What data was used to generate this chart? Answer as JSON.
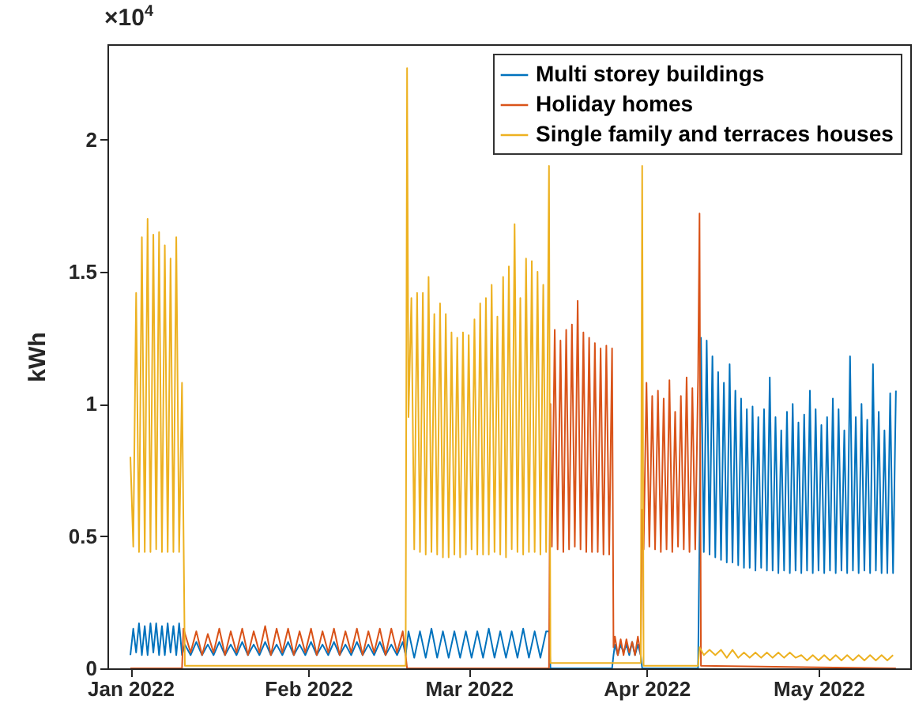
{
  "chart_data": {
    "type": "line",
    "ylabel": "kWh",
    "annotations": [
      "×10$^{4}$"
    ],
    "xlim": [
      "2021-12-28",
      "2022-05-17"
    ],
    "xticks": [
      {
        "value": "2022-01-01",
        "label": "Jan 2022"
      },
      {
        "value": "2022-02-01",
        "label": "Feb 2022"
      },
      {
        "value": "2022-03-01",
        "label": "Mar 2022"
      },
      {
        "value": "2022-04-01",
        "label": "Apr 2022"
      },
      {
        "value": "2022-05-01",
        "label": "May 2022"
      }
    ],
    "ylim": [
      0,
      2.36
    ],
    "yticks": [
      0,
      0.5,
      1,
      1.5,
      2
    ],
    "grid": false,
    "legend": "top right",
    "series": [
      {
        "name": "Multi storey buildings",
        "color": "#0072bd",
        "x": [
          "2022-01-01T00:00",
          "2022-01-01T12:00",
          "2022-01-02T00:00",
          "2022-01-02T12:00",
          "2022-01-03T00:00",
          "2022-01-03T12:00",
          "2022-01-04T00:00",
          "2022-01-04T12:00",
          "2022-01-05T00:00",
          "2022-01-05T12:00",
          "2022-01-06T00:00",
          "2022-01-06T12:00",
          "2022-01-07T00:00",
          "2022-01-07T12:00",
          "2022-01-08T00:00",
          "2022-01-08T12:00",
          "2022-01-09T00:00",
          "2022-01-09T12:00",
          "2022-01-10T00:00",
          "2022-01-10T12:00",
          "2022-01-11T12:00",
          "2022-01-12T12:00",
          "2022-01-13T12:00",
          "2022-01-14T12:00",
          "2022-01-15T12:00",
          "2022-01-16T12:00",
          "2022-01-17T12:00",
          "2022-01-18T12:00",
          "2022-01-19T12:00",
          "2022-01-20T12:00",
          "2022-01-21T12:00",
          "2022-01-22T12:00",
          "2022-01-23T12:00",
          "2022-01-24T12:00",
          "2022-01-25T12:00",
          "2022-01-26T12:00",
          "2022-01-27T12:00",
          "2022-01-28T12:00",
          "2022-01-29T12:00",
          "2022-01-30T12:00",
          "2022-01-31T12:00",
          "2022-02-01T12:00",
          "2022-02-02T12:00",
          "2022-02-03T12:00",
          "2022-02-04T12:00",
          "2022-02-05T12:00",
          "2022-02-06T12:00",
          "2022-02-07T12:00",
          "2022-02-08T12:00",
          "2022-02-09T12:00",
          "2022-02-10T12:00",
          "2022-02-11T12:00",
          "2022-02-12T12:00",
          "2022-02-13T12:00",
          "2022-02-14T12:00",
          "2022-02-15T12:00",
          "2022-02-16T12:00",
          "2022-02-17T12:00",
          "2022-02-18T00:00",
          "2022-02-18T12:00",
          "2022-02-19T12:00",
          "2022-02-20T12:00",
          "2022-02-21T12:00",
          "2022-02-22T12:00",
          "2022-02-23T12:00",
          "2022-02-24T12:00",
          "2022-02-25T12:00",
          "2022-02-26T12:00",
          "2022-02-27T12:00",
          "2022-02-28T12:00",
          "2022-03-01T12:00",
          "2022-03-02T12:00",
          "2022-03-03T12:00",
          "2022-03-04T12:00",
          "2022-03-05T12:00",
          "2022-03-06T12:00",
          "2022-03-07T12:00",
          "2022-03-08T12:00",
          "2022-03-09T12:00",
          "2022-03-10T12:00",
          "2022-03-11T12:00",
          "2022-03-12T12:00",
          "2022-03-13T12:00",
          "2022-03-14T12:00",
          "2022-03-15T00:00",
          "2022-03-15T06:00",
          "2022-03-26T00:00",
          "2022-03-26T06:00",
          "2022-03-26T12:00",
          "2022-03-27T00:00",
          "2022-03-27T12:00",
          "2022-03-28T00:00",
          "2022-03-28T12:00",
          "2022-03-29T00:00",
          "2022-03-29T12:00",
          "2022-03-30T00:00",
          "2022-03-30T12:00",
          "2022-03-31T00:00",
          "2022-03-31T06:00",
          "2022-04-10T00:00",
          "2022-04-10T06:00",
          "2022-04-10T12:00",
          "2022-04-11T00:00",
          "2022-04-11T12:00",
          "2022-04-12T00:00",
          "2022-04-12T12:00",
          "2022-04-13T00:00",
          "2022-04-13T12:00",
          "2022-04-14T00:00",
          "2022-04-14T12:00",
          "2022-04-15T00:00",
          "2022-04-15T12:00",
          "2022-04-16T00:00",
          "2022-04-16T12:00",
          "2022-04-17T00:00",
          "2022-04-17T12:00",
          "2022-04-18T00:00",
          "2022-04-18T12:00",
          "2022-04-19T00:00",
          "2022-04-19T12:00",
          "2022-04-20T00:00",
          "2022-04-20T12:00",
          "2022-04-21T00:00",
          "2022-04-21T12:00",
          "2022-04-22T00:00",
          "2022-04-22T12:00",
          "2022-04-23T00:00",
          "2022-04-23T12:00",
          "2022-04-24T00:00",
          "2022-04-24T12:00",
          "2022-04-25T00:00",
          "2022-04-25T12:00",
          "2022-04-26T00:00",
          "2022-04-26T12:00",
          "2022-04-27T00:00",
          "2022-04-27T12:00",
          "2022-04-28T00:00",
          "2022-04-28T12:00",
          "2022-04-29T00:00",
          "2022-04-29T12:00",
          "2022-04-30T00:00",
          "2022-04-30T12:00",
          "2022-05-01T00:00",
          "2022-05-01T12:00",
          "2022-05-02T00:00",
          "2022-05-02T12:00",
          "2022-05-03T00:00",
          "2022-05-03T12:00",
          "2022-05-04T00:00",
          "2022-05-04T12:00",
          "2022-05-05T00:00",
          "2022-05-05T12:00",
          "2022-05-06T00:00",
          "2022-05-06T12:00",
          "2022-05-07T00:00",
          "2022-05-07T12:00",
          "2022-05-08T00:00",
          "2022-05-08T12:00",
          "2022-05-09T00:00",
          "2022-05-09T12:00",
          "2022-05-10T00:00",
          "2022-05-10T12:00",
          "2022-05-11T00:00",
          "2022-05-11T12:00",
          "2022-05-12T00:00",
          "2022-05-12T12:00",
          "2022-05-13T00:00",
          "2022-05-13T12:00",
          "2022-05-14T00:00",
          "2022-05-14T12:00"
        ],
        "values": [
          0.05,
          0.15,
          0.06,
          0.17,
          0.05,
          0.16,
          0.05,
          0.17,
          0.06,
          0.17,
          0.05,
          0.16,
          0.05,
          0.17,
          0.06,
          0.16,
          0.05,
          0.17,
          0.05,
          0.09,
          0.05,
          0.1,
          0.05,
          0.09,
          0.05,
          0.1,
          0.05,
          0.09,
          0.05,
          0.1,
          0.05,
          0.09,
          0.05,
          0.1,
          0.05,
          0.09,
          0.05,
          0.1,
          0.05,
          0.09,
          0.05,
          0.1,
          0.05,
          0.09,
          0.05,
          0.1,
          0.05,
          0.09,
          0.05,
          0.1,
          0.05,
          0.09,
          0.05,
          0.1,
          0.05,
          0.09,
          0.05,
          0.1,
          0.05,
          0.14,
          0.04,
          0.14,
          0.04,
          0.15,
          0.04,
          0.14,
          0.04,
          0.14,
          0.04,
          0.14,
          0.04,
          0.14,
          0.04,
          0.15,
          0.04,
          0.14,
          0.04,
          0.14,
          0.04,
          0.15,
          0.04,
          0.14,
          0.04,
          0.14,
          0.14,
          0,
          0,
          0.05,
          0.09,
          0.05,
          0.09,
          0.06,
          0.09,
          0.05,
          0.1,
          0.05,
          0.09,
          0.05,
          0,
          0,
          0.5,
          1.25,
          0.44,
          1.24,
          0.43,
          1.18,
          0.42,
          1.12,
          0.41,
          1.08,
          0.4,
          1.15,
          0.4,
          1.05,
          0.39,
          1.02,
          0.38,
          0.98,
          0.38,
          0.99,
          0.37,
          0.95,
          0.38,
          0.98,
          0.37,
          1.1,
          0.37,
          0.95,
          0.36,
          0.9,
          0.37,
          0.97,
          0.36,
          1,
          0.37,
          0.93,
          0.36,
          0.96,
          0.37,
          1.05,
          0.36,
          0.98,
          0.37,
          0.92,
          0.36,
          0.95,
          0.37,
          1.02,
          0.36,
          0.98,
          0.37,
          0.9,
          0.36,
          1.18,
          0.37,
          0.95,
          0.36,
          1,
          0.37,
          0.94,
          0.36,
          1.15,
          0.37,
          0.97,
          0.36,
          0.9,
          0.36,
          1.04,
          0.36,
          1.05
        ]
      },
      {
        "name": "Holiday homes",
        "color": "#d95319",
        "x": [
          "2022-01-01T00:00",
          "2022-01-10T00:00",
          "2022-01-10T06:00",
          "2022-01-11T12:00",
          "2022-01-12T12:00",
          "2022-01-13T12:00",
          "2022-01-14T12:00",
          "2022-01-15T12:00",
          "2022-01-16T12:00",
          "2022-01-17T12:00",
          "2022-01-18T12:00",
          "2022-01-19T12:00",
          "2022-01-20T12:00",
          "2022-01-21T12:00",
          "2022-01-22T12:00",
          "2022-01-23T12:00",
          "2022-01-24T12:00",
          "2022-01-25T12:00",
          "2022-01-26T12:00",
          "2022-01-27T12:00",
          "2022-01-28T12:00",
          "2022-01-29T12:00",
          "2022-01-30T12:00",
          "2022-01-31T12:00",
          "2022-02-01T12:00",
          "2022-02-02T12:00",
          "2022-02-03T12:00",
          "2022-02-04T12:00",
          "2022-02-05T12:00",
          "2022-02-06T12:00",
          "2022-02-07T12:00",
          "2022-02-08T12:00",
          "2022-02-09T12:00",
          "2022-02-10T12:00",
          "2022-02-11T12:00",
          "2022-02-12T12:00",
          "2022-02-13T12:00",
          "2022-02-14T12:00",
          "2022-02-15T12:00",
          "2022-02-16T12:00",
          "2022-02-17T12:00",
          "2022-02-18T00:00",
          "2022-02-18T06:00",
          "2022-03-15T00:00",
          "2022-03-15T06:00",
          "2022-03-15T12:00",
          "2022-03-16T00:00",
          "2022-03-16T12:00",
          "2022-03-17T00:00",
          "2022-03-17T12:00",
          "2022-03-18T00:00",
          "2022-03-18T12:00",
          "2022-03-19T00:00",
          "2022-03-19T12:00",
          "2022-03-20T00:00",
          "2022-03-20T12:00",
          "2022-03-21T00:00",
          "2022-03-21T12:00",
          "2022-03-22T00:00",
          "2022-03-22T12:00",
          "2022-03-23T00:00",
          "2022-03-23T12:00",
          "2022-03-24T00:00",
          "2022-03-24T12:00",
          "2022-03-25T00:00",
          "2022-03-25T12:00",
          "2022-03-26T00:00",
          "2022-03-26T06:00",
          "2022-03-26T12:00",
          "2022-03-27T00:00",
          "2022-03-27T12:00",
          "2022-03-28T00:00",
          "2022-03-28T12:00",
          "2022-03-29T00:00",
          "2022-03-29T12:00",
          "2022-03-30T00:00",
          "2022-03-30T12:00",
          "2022-03-31T00:00",
          "2022-03-31T06:00",
          "2022-03-31T12:00",
          "2022-04-01T00:00",
          "2022-04-01T12:00",
          "2022-04-02T00:00",
          "2022-04-02T12:00",
          "2022-04-03T00:00",
          "2022-04-03T12:00",
          "2022-04-04T00:00",
          "2022-04-04T12:00",
          "2022-04-05T00:00",
          "2022-04-05T12:00",
          "2022-04-06T00:00",
          "2022-04-06T12:00",
          "2022-04-07T00:00",
          "2022-04-07T12:00",
          "2022-04-08T00:00",
          "2022-04-08T12:00",
          "2022-04-09T00:00",
          "2022-04-09T12:00",
          "2022-04-10T00:00",
          "2022-04-10T06:00",
          "2022-04-10T12:00",
          "2022-05-14T12:00"
        ],
        "values": [
          0,
          0,
          0.15,
          0.06,
          0.14,
          0.05,
          0.13,
          0.06,
          0.15,
          0.05,
          0.14,
          0.06,
          0.15,
          0.05,
          0.14,
          0.06,
          0.16,
          0.05,
          0.15,
          0.06,
          0.15,
          0.05,
          0.14,
          0.06,
          0.15,
          0.05,
          0.14,
          0.06,
          0.15,
          0.05,
          0.14,
          0.06,
          0.15,
          0.05,
          0.14,
          0.06,
          0.15,
          0.05,
          0.15,
          0.06,
          0.14,
          0.05,
          0,
          0,
          1,
          0.46,
          1.28,
          0.45,
          1.24,
          0.44,
          1.28,
          0.45,
          1.3,
          0.46,
          1.39,
          0.45,
          1.27,
          0.44,
          1.25,
          0.44,
          1.23,
          0.44,
          1.21,
          0.43,
          1.22,
          0.43,
          1.21,
          0.08,
          0.12,
          0.05,
          0.11,
          0.05,
          0.11,
          0.06,
          0.1,
          0.05,
          0.12,
          0.05,
          0.6,
          0.45,
          1.08,
          0.46,
          1.03,
          0.45,
          1.05,
          0.44,
          1.02,
          0.45,
          1.09,
          0.44,
          0.97,
          0.46,
          1.03,
          0.45,
          1.1,
          0.44,
          1.06,
          0.45,
          1.1,
          1.72,
          0.01,
          0
        ]
      },
      {
        "name": "Single family and terraces houses",
        "color": "#edb120",
        "x": [
          "2022-01-01T00:00",
          "2022-01-01T12:00",
          "2022-01-02T00:00",
          "2022-01-02T12:00",
          "2022-01-03T00:00",
          "2022-01-03T12:00",
          "2022-01-04T00:00",
          "2022-01-04T12:00",
          "2022-01-05T00:00",
          "2022-01-05T12:00",
          "2022-01-06T00:00",
          "2022-01-06T12:00",
          "2022-01-07T00:00",
          "2022-01-07T12:00",
          "2022-01-08T00:00",
          "2022-01-08T12:00",
          "2022-01-09T00:00",
          "2022-01-09T12:00",
          "2022-01-10T00:00",
          "2022-01-10T12:00",
          "2022-02-18T00:00",
          "2022-02-18T06:00",
          "2022-02-18T12:00",
          "2022-02-19T00:00",
          "2022-02-19T12:00",
          "2022-02-20T00:00",
          "2022-02-20T12:00",
          "2022-02-21T00:00",
          "2022-02-21T12:00",
          "2022-02-22T00:00",
          "2022-02-22T12:00",
          "2022-02-23T00:00",
          "2022-02-23T12:00",
          "2022-02-24T00:00",
          "2022-02-24T12:00",
          "2022-02-25T00:00",
          "2022-02-25T12:00",
          "2022-02-26T00:00",
          "2022-02-26T12:00",
          "2022-02-27T00:00",
          "2022-02-27T12:00",
          "2022-02-28T00:00",
          "2022-02-28T12:00",
          "2022-03-01T00:00",
          "2022-03-01T12:00",
          "2022-03-02T00:00",
          "2022-03-02T12:00",
          "2022-03-03T00:00",
          "2022-03-03T12:00",
          "2022-03-04T00:00",
          "2022-03-04T12:00",
          "2022-03-05T00:00",
          "2022-03-05T12:00",
          "2022-03-06T00:00",
          "2022-03-06T12:00",
          "2022-03-07T00:00",
          "2022-03-07T12:00",
          "2022-03-08T00:00",
          "2022-03-08T12:00",
          "2022-03-09T00:00",
          "2022-03-09T12:00",
          "2022-03-10T00:00",
          "2022-03-10T12:00",
          "2022-03-11T00:00",
          "2022-03-11T12:00",
          "2022-03-12T00:00",
          "2022-03-12T12:00",
          "2022-03-13T00:00",
          "2022-03-13T12:00",
          "2022-03-14T00:00",
          "2022-03-14T12:00",
          "2022-03-15T00:00",
          "2022-03-15T06:00",
          "2022-03-31T00:00",
          "2022-03-31T06:00",
          "2022-03-31T12:00",
          "2022-04-10T00:00",
          "2022-04-10T06:00",
          "2022-04-11T00:00",
          "2022-04-12T00:00",
          "2022-04-13T00:00",
          "2022-04-14T00:00",
          "2022-04-15T00:00",
          "2022-04-16T00:00",
          "2022-04-17T00:00",
          "2022-04-18T00:00",
          "2022-04-19T00:00",
          "2022-04-20T00:00",
          "2022-04-21T00:00",
          "2022-04-22T00:00",
          "2022-04-23T00:00",
          "2022-04-24T00:00",
          "2022-04-25T00:00",
          "2022-04-26T00:00",
          "2022-04-27T00:00",
          "2022-04-28T00:00",
          "2022-04-29T00:00",
          "2022-04-30T00:00",
          "2022-05-01T00:00",
          "2022-05-02T00:00",
          "2022-05-03T00:00",
          "2022-05-04T00:00",
          "2022-05-05T00:00",
          "2022-05-06T00:00",
          "2022-05-07T00:00",
          "2022-05-08T00:00",
          "2022-05-09T00:00",
          "2022-05-10T00:00",
          "2022-05-11T00:00",
          "2022-05-12T00:00",
          "2022-05-13T00:00",
          "2022-05-14T00:00"
        ],
        "values": [
          0.8,
          0.46,
          1.42,
          0.44,
          1.63,
          0.44,
          1.7,
          0.44,
          1.64,
          0.45,
          1.65,
          0.44,
          1.6,
          0.44,
          1.55,
          0.44,
          1.63,
          0.44,
          1.08,
          0.01,
          0.01,
          2.27,
          0.95,
          1.4,
          0.45,
          1.42,
          0.44,
          1.42,
          0.43,
          1.48,
          0.44,
          1.34,
          0.43,
          1.38,
          0.42,
          1.34,
          0.42,
          1.27,
          0.43,
          1.25,
          0.42,
          1.27,
          0.43,
          1.26,
          0.45,
          1.32,
          0.43,
          1.38,
          0.43,
          1.4,
          0.43,
          1.45,
          0.44,
          1.33,
          0.43,
          1.48,
          0.42,
          1.52,
          0.45,
          1.68,
          0.44,
          1.4,
          0.43,
          1.55,
          0.44,
          1.54,
          0.44,
          1.5,
          0.43,
          1.45,
          0.44,
          1.9,
          0.02,
          0.02,
          1.9,
          0.01,
          0.01,
          0.08,
          0.05,
          0.07,
          0.05,
          0.07,
          0.04,
          0.07,
          0.04,
          0.06,
          0.04,
          0.06,
          0.04,
          0.06,
          0.04,
          0.06,
          0.04,
          0.06,
          0.04,
          0.05,
          0.03,
          0.05,
          0.03,
          0.05,
          0.03,
          0.05,
          0.03,
          0.05,
          0.03,
          0.05,
          0.03,
          0.05,
          0.03,
          0.05,
          0.03,
          0.05
        ]
      }
    ]
  }
}
